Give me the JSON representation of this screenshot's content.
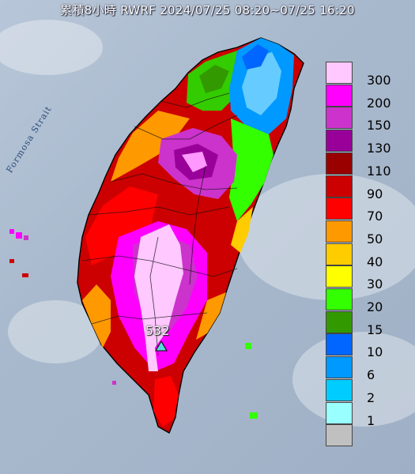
{
  "title": "累積8小時 RWRF 2024/07/25 08:20~07/25 16:20",
  "map_labels": {
    "strait": "Formosa Strait",
    "max_value": "532",
    "max_marker_icon": "triangle-marker-icon"
  },
  "colors": {
    "sea": "#a9b9cd",
    "land_outline": "#000000"
  },
  "legend": {
    "unit_hint": "",
    "bins": [
      {
        "label": "300",
        "color": "#ffc8ff"
      },
      {
        "label": "200",
        "color": "#ff00ff"
      },
      {
        "label": "150",
        "color": "#cc33cc"
      },
      {
        "label": "130",
        "color": "#990099"
      },
      {
        "label": "110",
        "color": "#990000"
      },
      {
        "label": "90",
        "color": "#cc0000"
      },
      {
        "label": "70",
        "color": "#ff0000"
      },
      {
        "label": "50",
        "color": "#ff9900"
      },
      {
        "label": "40",
        "color": "#ffcc00"
      },
      {
        "label": "30",
        "color": "#ffff00"
      },
      {
        "label": "20",
        "color": "#33ff00"
      },
      {
        "label": "15",
        "color": "#339900"
      },
      {
        "label": "10",
        "color": "#0066ff"
      },
      {
        "label": "6",
        "color": "#0099ff"
      },
      {
        "label": "2",
        "color": "#00ccff"
      },
      {
        "label": "1",
        "color": "#99ffff"
      },
      {
        "label": "",
        "color": "#c0c0c0"
      }
    ]
  }
}
